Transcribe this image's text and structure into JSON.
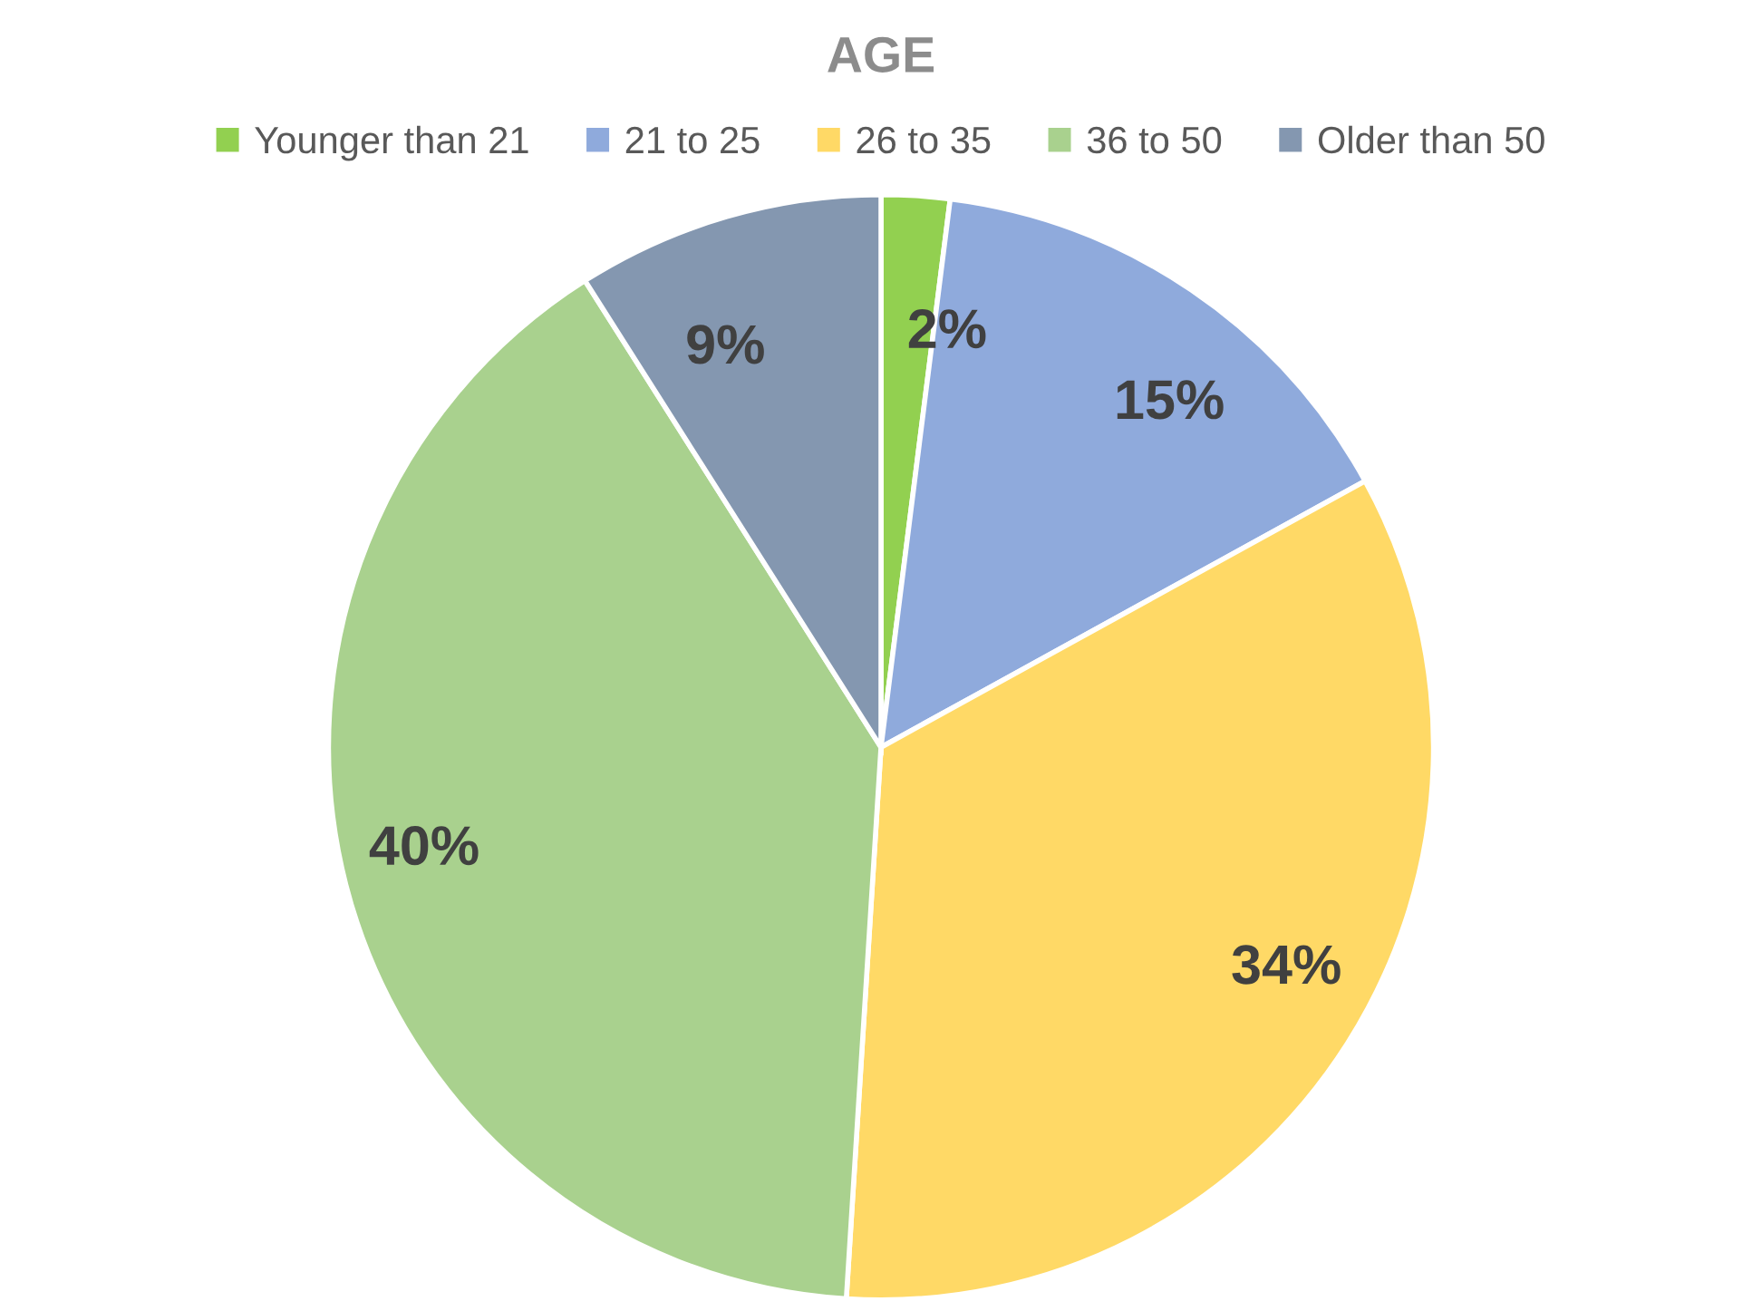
{
  "chart_data": {
    "type": "pie",
    "title": "AGE",
    "categories": [
      "Younger than 21",
      "21 to 25",
      "26 to 35",
      "36 to 50",
      "Older than 50"
    ],
    "values": [
      2,
      15,
      34,
      40,
      9
    ],
    "colors": [
      "#92d050",
      "#8faadc",
      "#ffd966",
      "#a9d18e",
      "#8497b0"
    ],
    "value_labels": [
      "2%",
      "15%",
      "34%",
      "40%",
      "9%"
    ],
    "legend": "top"
  }
}
